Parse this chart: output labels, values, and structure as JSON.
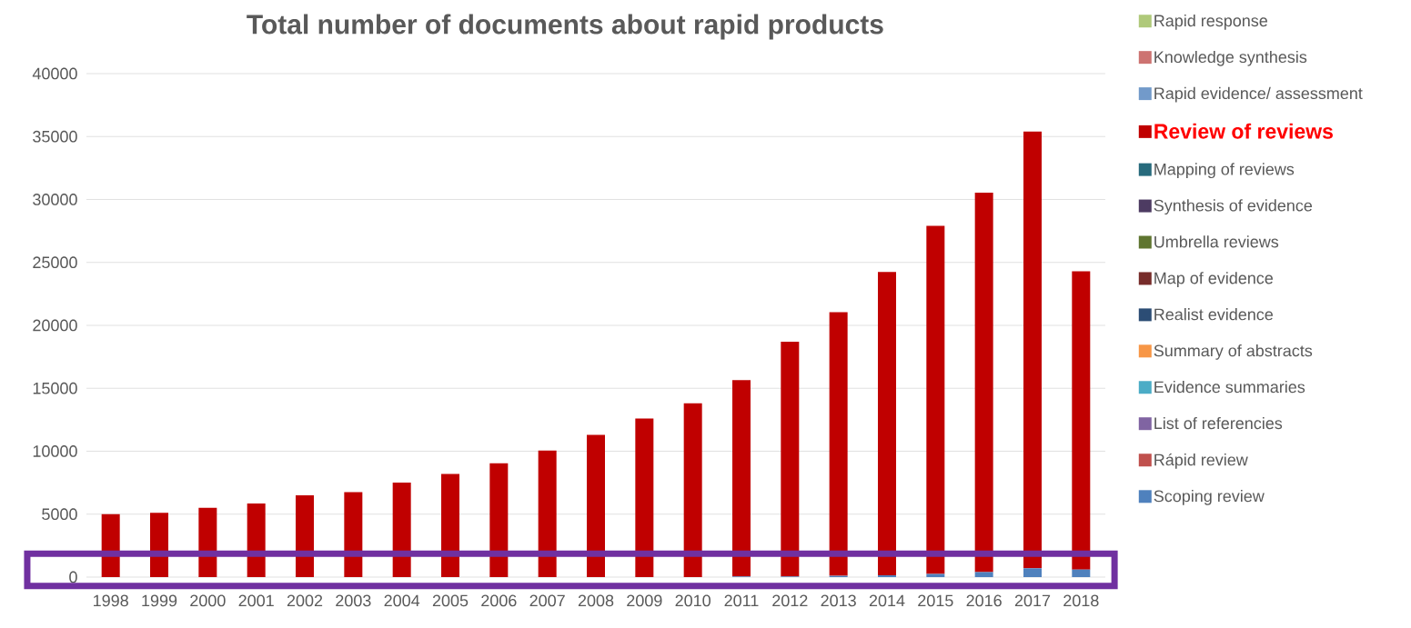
{
  "chart_data": {
    "type": "bar",
    "stacked": true,
    "title": "Total number of documents about rapid products",
    "categories": [
      "1998",
      "1999",
      "2000",
      "2001",
      "2002",
      "2003",
      "2004",
      "2005",
      "2006",
      "2007",
      "2008",
      "2009",
      "2010",
      "2011",
      "2012",
      "2013",
      "2014",
      "2015",
      "2016",
      "2017",
      "2018"
    ],
    "ylim": [
      0,
      40000
    ],
    "yticks": [
      0,
      5000,
      10000,
      15000,
      20000,
      25000,
      30000,
      35000,
      40000
    ],
    "grid": "y",
    "legend": "right",
    "series": [
      {
        "name": "Scoping review",
        "color": "#4f81bd",
        "values": [
          0,
          0,
          0,
          0,
          0,
          0,
          0,
          0,
          0,
          0,
          0,
          0,
          0,
          50,
          50,
          100,
          150,
          250,
          400,
          700,
          600
        ]
      },
      {
        "name": "Rápid review",
        "color": "#c0504d",
        "values": [
          0,
          0,
          0,
          0,
          0,
          0,
          0,
          0,
          0,
          0,
          0,
          0,
          0,
          0,
          0,
          0,
          0,
          0,
          0,
          0,
          0
        ]
      },
      {
        "name": "List of referencies",
        "color": "#8064a2",
        "values": [
          0,
          0,
          0,
          0,
          0,
          0,
          0,
          0,
          0,
          0,
          0,
          0,
          0,
          0,
          0,
          0,
          0,
          0,
          0,
          0,
          0
        ]
      },
      {
        "name": "Evidence summaries",
        "color": "#4bacc6",
        "values": [
          0,
          0,
          0,
          0,
          0,
          0,
          0,
          0,
          0,
          0,
          0,
          0,
          0,
          0,
          0,
          0,
          0,
          0,
          0,
          0,
          0
        ]
      },
      {
        "name": "Summary of abstracts",
        "color": "#f79646",
        "values": [
          0,
          0,
          0,
          0,
          0,
          0,
          0,
          0,
          0,
          0,
          0,
          0,
          0,
          0,
          0,
          0,
          0,
          0,
          0,
          0,
          0
        ]
      },
      {
        "name": "Realist evidence",
        "color": "#2c4d75",
        "values": [
          0,
          0,
          0,
          0,
          0,
          0,
          0,
          0,
          0,
          0,
          0,
          0,
          0,
          0,
          0,
          0,
          0,
          0,
          0,
          0,
          0
        ]
      },
      {
        "name": "Map of evidence",
        "color": "#772c2a",
        "values": [
          0,
          0,
          0,
          0,
          0,
          0,
          0,
          0,
          0,
          0,
          0,
          0,
          0,
          0,
          0,
          0,
          0,
          0,
          0,
          0,
          0
        ]
      },
      {
        "name": "Umbrella reviews",
        "color": "#5f7530",
        "values": [
          0,
          0,
          0,
          0,
          0,
          0,
          0,
          0,
          0,
          0,
          0,
          0,
          0,
          0,
          0,
          0,
          0,
          0,
          0,
          0,
          0
        ]
      },
      {
        "name": "Synthesis of evidence",
        "color": "#4d3b62",
        "values": [
          0,
          0,
          0,
          0,
          0,
          0,
          0,
          0,
          0,
          0,
          0,
          0,
          0,
          0,
          0,
          0,
          0,
          0,
          0,
          0,
          0
        ]
      },
      {
        "name": "Mapping of reviews",
        "color": "#276a7c",
        "values": [
          0,
          0,
          0,
          0,
          0,
          0,
          0,
          0,
          0,
          0,
          0,
          0,
          0,
          0,
          0,
          0,
          0,
          0,
          0,
          0,
          0
        ]
      },
      {
        "name": "Review of reviews",
        "color": "#c00000",
        "values": [
          5000,
          5100,
          5500,
          5850,
          6500,
          6750,
          7500,
          8200,
          9050,
          10050,
          11300,
          12600,
          13800,
          15600,
          18650,
          20950,
          24100,
          27650,
          30150,
          34700,
          23700
        ]
      },
      {
        "name": "Rapid evidence/ assessment",
        "color": "#729aca",
        "values": [
          0,
          0,
          0,
          0,
          0,
          0,
          0,
          0,
          0,
          0,
          0,
          0,
          0,
          0,
          0,
          0,
          0,
          0,
          0,
          0,
          0
        ]
      },
      {
        "name": "Knowledge synthesis",
        "color": "#cd7371",
        "values": [
          0,
          0,
          0,
          0,
          0,
          0,
          0,
          0,
          0,
          0,
          0,
          0,
          0,
          0,
          0,
          0,
          0,
          0,
          0,
          0,
          0
        ]
      },
      {
        "name": "Rapid response",
        "color": "#afc97a",
        "values": [
          0,
          0,
          0,
          0,
          0,
          0,
          0,
          0,
          0,
          0,
          0,
          0,
          0,
          0,
          0,
          0,
          0,
          0,
          0,
          0,
          0
        ]
      }
    ]
  }
}
